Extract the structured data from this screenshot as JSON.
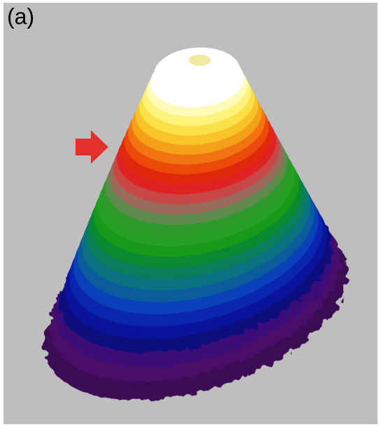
{
  "panel_label": "(a)"
}
